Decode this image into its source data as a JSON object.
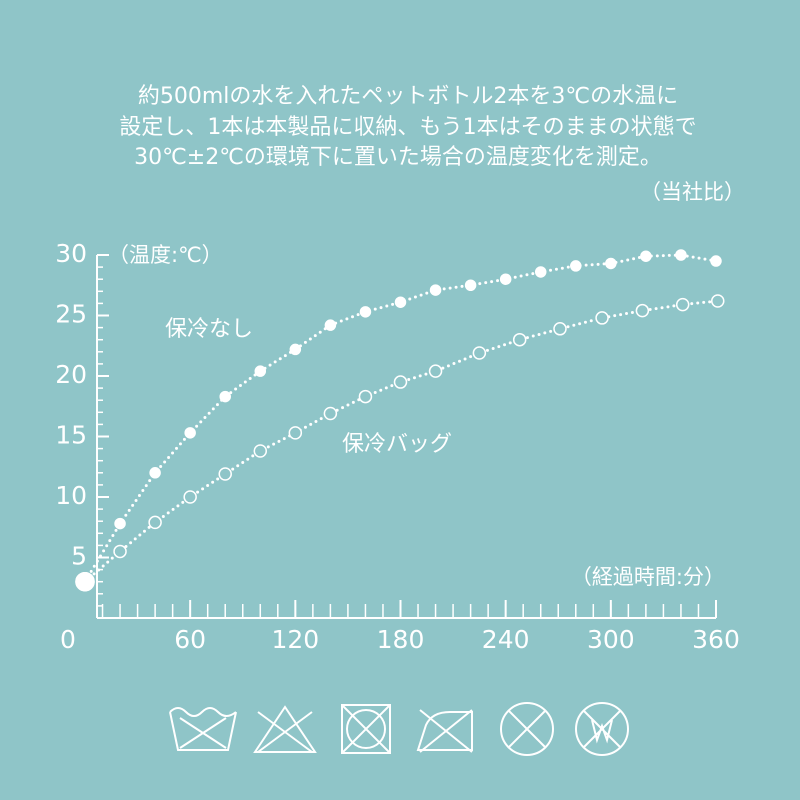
{
  "chart_data": {
    "type": "line",
    "description": [
      "約500mlの水を入れたペットボトル2本を3℃の水温に",
      "設定し、1本は本製品に収納、もう1本はそのままの状態で",
      "30℃±2℃の環境下に置いた場合の温度変化を測定。"
    ],
    "note": "（当社比）",
    "y_label": "（温度:℃）",
    "x_label": "（経過時間:分）",
    "series": [
      {
        "name": "保冷なし",
        "color": "#ffffff",
        "marker": "filled",
        "x": [
          0,
          20,
          40,
          60,
          80,
          100,
          120,
          140,
          160,
          180,
          200,
          220,
          240,
          260,
          280,
          300,
          320,
          340,
          360
        ],
        "values": [
          3.0,
          7.8,
          12.0,
          15.3,
          18.3,
          20.4,
          22.2,
          24.2,
          25.3,
          26.1,
          27.1,
          27.5,
          28.0,
          28.6,
          29.1,
          29.3,
          29.9,
          30.0,
          29.5
        ]
      },
      {
        "name": "保冷バッグ",
        "color": "#ffffff",
        "marker": "hollow",
        "x": [
          0,
          20,
          40,
          60,
          80,
          100,
          120,
          140,
          160,
          180,
          200,
          225,
          248,
          271,
          295,
          318,
          341,
          361
        ],
        "values": [
          3.0,
          5.5,
          7.9,
          10.0,
          11.9,
          13.8,
          15.3,
          16.9,
          18.3,
          19.5,
          20.4,
          21.9,
          23.0,
          23.9,
          24.8,
          25.4,
          25.9,
          26.2
        ]
      }
    ],
    "xlim": [
      0,
      360
    ],
    "xticks": [
      0,
      60,
      120,
      180,
      240,
      300,
      360
    ],
    "ylim": [
      0,
      30
    ],
    "yticks": [
      5,
      10,
      15,
      20,
      25,
      30
    ]
  }
}
